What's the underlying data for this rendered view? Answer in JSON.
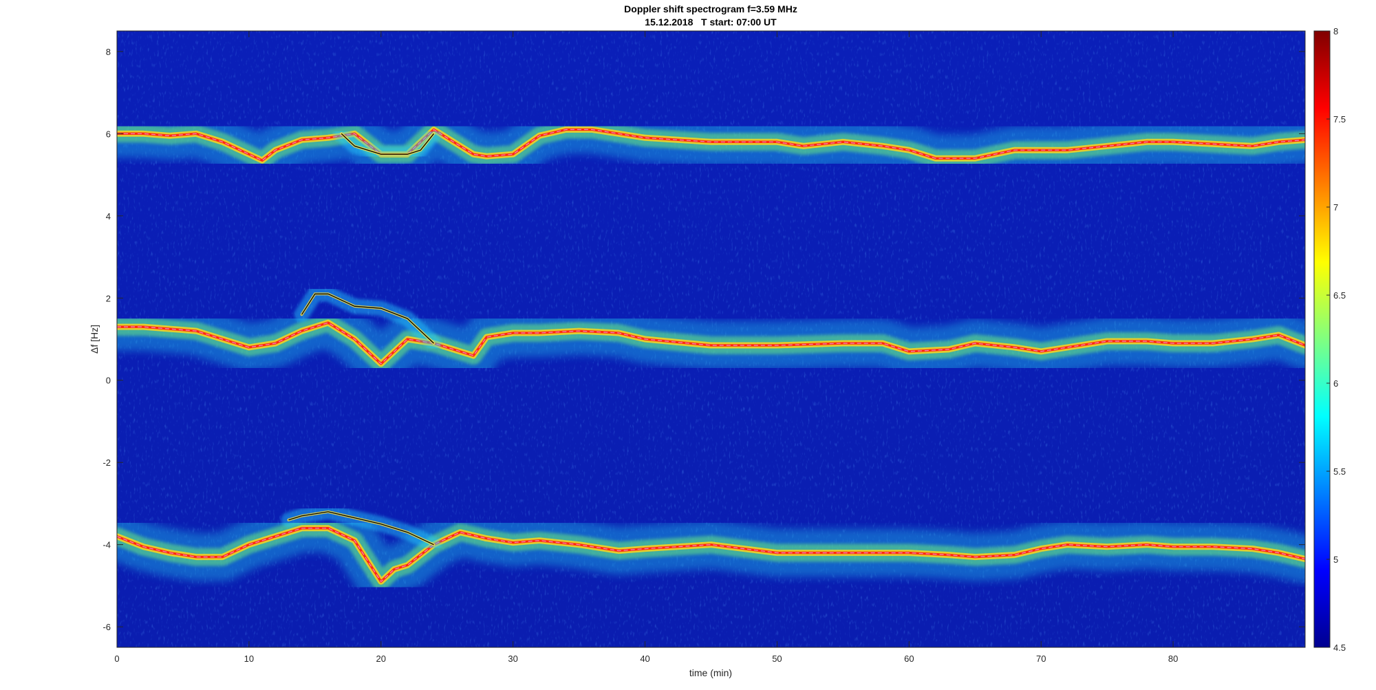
{
  "chart_data": {
    "type": "heatmap",
    "title": "Doppler shift spectrogram f=3.59 MHz",
    "subtitle": "15.12.2018   T start: 07:00 UT",
    "xlabel": "time (min)",
    "ylabel": "Δf [Hz]",
    "xlim": [
      0,
      90
    ],
    "ylim": [
      -6.5,
      8.5
    ],
    "xticks": [
      "0",
      "10",
      "20",
      "30",
      "40",
      "50",
      "60",
      "70",
      "80"
    ],
    "yticks": [
      "-6",
      "-4",
      "-2",
      "0",
      "2",
      "4",
      "6",
      "8"
    ],
    "colorbar": {
      "range": [
        4.5,
        8
      ],
      "ticks": [
        "4.5",
        "5",
        "5.5",
        "6",
        "6.5",
        "7",
        "7.5",
        "8"
      ],
      "colormap": "jet"
    },
    "grid": false,
    "series": [
      {
        "x": [
          0,
          2,
          4,
          6,
          8,
          10,
          11,
          12,
          14,
          16,
          18,
          20,
          22,
          24,
          26,
          27,
          28,
          30,
          32,
          34,
          36,
          38,
          40,
          45,
          50,
          52,
          55,
          58,
          60,
          62,
          65,
          68,
          70,
          72,
          75,
          78,
          80,
          83,
          86,
          88,
          90
        ],
        "values": [
          6.0,
          6.0,
          5.95,
          6.0,
          5.8,
          5.5,
          5.35,
          5.6,
          5.85,
          5.9,
          6.0,
          5.5,
          5.5,
          6.1,
          5.7,
          5.5,
          5.45,
          5.5,
          5.95,
          6.1,
          6.1,
          6.0,
          5.9,
          5.8,
          5.8,
          5.7,
          5.8,
          5.7,
          5.6,
          5.4,
          5.4,
          5.6,
          5.6,
          5.6,
          5.7,
          5.8,
          5.8,
          5.75,
          5.7,
          5.8,
          5.85
        ]
      },
      {
        "x": [
          0,
          2,
          4,
          6,
          8,
          10,
          12,
          14,
          16,
          18,
          20,
          22,
          24,
          26,
          27,
          28,
          30,
          32,
          35,
          38,
          40,
          45,
          50,
          55,
          58,
          60,
          63,
          65,
          68,
          70,
          72,
          75,
          78,
          80,
          83,
          86,
          88,
          90
        ],
        "values": [
          1.3,
          1.3,
          1.25,
          1.2,
          1.0,
          0.8,
          0.9,
          1.2,
          1.4,
          1.0,
          0.4,
          1.0,
          0.9,
          0.7,
          0.6,
          1.05,
          1.15,
          1.15,
          1.2,
          1.15,
          1.0,
          0.85,
          0.85,
          0.9,
          0.9,
          0.7,
          0.75,
          0.9,
          0.8,
          0.7,
          0.8,
          0.95,
          0.95,
          0.9,
          0.9,
          1.0,
          1.1,
          0.85
        ]
      },
      {
        "x": [
          0,
          2,
          4,
          6,
          8,
          10,
          12,
          14,
          16,
          18,
          20,
          21,
          22,
          24,
          26,
          28,
          30,
          32,
          35,
          38,
          40,
          45,
          50,
          55,
          60,
          63,
          65,
          68,
          70,
          72,
          75,
          78,
          80,
          83,
          86,
          88,
          90
        ],
        "values": [
          -3.8,
          -4.05,
          -4.2,
          -4.3,
          -4.3,
          -4.0,
          -3.8,
          -3.6,
          -3.6,
          -3.9,
          -4.9,
          -4.6,
          -4.5,
          -4.0,
          -3.7,
          -3.85,
          -3.95,
          -3.9,
          -4.0,
          -4.15,
          -4.1,
          -4.0,
          -4.2,
          -4.2,
          -4.2,
          -4.25,
          -4.3,
          -4.25,
          -4.1,
          -4.0,
          -4.05,
          -4.0,
          -4.05,
          -4.05,
          -4.1,
          -4.2,
          -4.35
        ]
      }
    ],
    "secondary_traces": [
      {
        "x": [
          14,
          15,
          16,
          18,
          20,
          22,
          24
        ],
        "values": [
          1.6,
          2.1,
          2.1,
          1.8,
          1.75,
          1.5,
          0.9
        ]
      },
      {
        "x": [
          13,
          14,
          16,
          18,
          20,
          22,
          24
        ],
        "values": [
          -3.4,
          -3.3,
          -3.2,
          -3.35,
          -3.5,
          -3.7,
          -4.0
        ]
      },
      {
        "x": [
          17,
          18,
          20,
          22,
          23,
          24
        ],
        "values": [
          6.0,
          5.7,
          5.5,
          5.5,
          5.6,
          6.0
        ]
      }
    ]
  }
}
